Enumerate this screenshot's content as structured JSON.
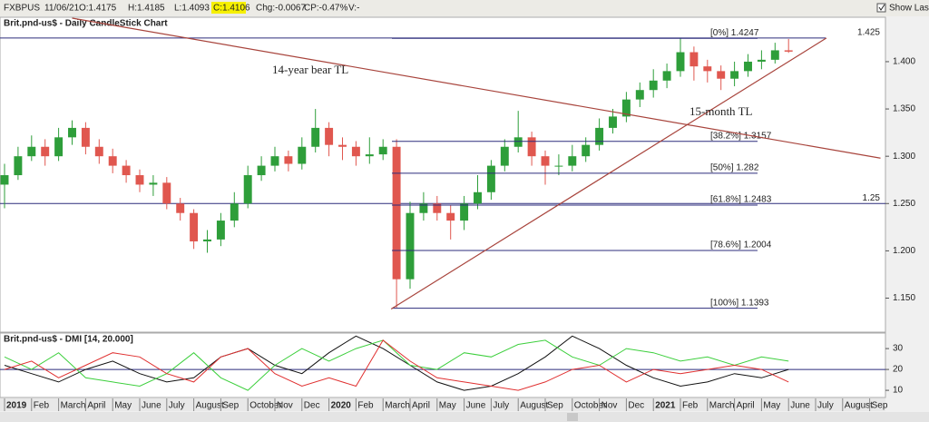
{
  "toolbar": {
    "symbol": "FXBPUS",
    "date": "11/06/21",
    "open": "O:1.4175",
    "high": "H:1.4185",
    "low": "L:1.4093",
    "close": "C:1.4106",
    "change": "Chg:-0.0067",
    "change_pct": "CP:-0.47%",
    "volume": "V:-",
    "show_last": "Show Last"
  },
  "chart_data": [
    {
      "type": "candlestick",
      "title": "Brit.pnd-us$ - Daily CandleStick Chart",
      "xlim": [
        0,
        32.5
      ],
      "ylim": [
        1.115,
        1.446
      ],
      "yticks": [
        {
          "value": 1.4,
          "label": "1.400"
        },
        {
          "value": 1.35,
          "label": "1.350"
        },
        {
          "value": 1.3,
          "label": "1.300"
        },
        {
          "value": 1.25,
          "label": "1.250"
        },
        {
          "value": 1.2,
          "label": "1.200"
        },
        {
          "value": 1.15,
          "label": "1.150"
        }
      ],
      "up_color": "#2e9e3a",
      "down_color": "#e0574f",
      "candles": {
        "x": [
          0,
          0.5,
          1,
          1.5,
          2,
          2.5,
          3,
          3.5,
          4,
          4.5,
          5,
          5.5,
          6,
          6.5,
          7,
          7.5,
          8,
          8.5,
          9,
          9.5,
          10,
          10.5,
          11,
          11.5,
          12,
          12.5,
          13,
          13.5,
          14,
          14.5,
          15,
          15.5,
          16,
          16.5,
          17,
          17.5,
          18,
          18.5,
          19,
          19.5,
          20,
          20.5,
          21,
          21.5,
          22,
          22.5,
          23,
          23.5,
          24,
          24.5,
          25,
          25.5,
          26,
          26.5,
          27,
          27.5,
          28,
          28.5,
          29
        ],
        "open": [
          1.27,
          1.28,
          1.3,
          1.31,
          1.3,
          1.32,
          1.33,
          1.31,
          1.3,
          1.29,
          1.28,
          1.27,
          1.272,
          1.25,
          1.24,
          1.21,
          1.212,
          1.232,
          1.25,
          1.28,
          1.29,
          1.3,
          1.292,
          1.31,
          1.33,
          1.312,
          1.31,
          1.3,
          1.302,
          1.31,
          1.17,
          1.24,
          1.25,
          1.24,
          1.232,
          1.25,
          1.262,
          1.29,
          1.31,
          1.32,
          1.3,
          1.29,
          1.29,
          1.3,
          1.312,
          1.33,
          1.342,
          1.36,
          1.37,
          1.38,
          1.39,
          1.41,
          1.395,
          1.39,
          1.382,
          1.39,
          1.4,
          1.402,
          1.412
        ],
        "high": [
          1.292,
          1.31,
          1.322,
          1.318,
          1.33,
          1.338,
          1.336,
          1.318,
          1.308,
          1.296,
          1.286,
          1.28,
          1.278,
          1.256,
          1.244,
          1.222,
          1.24,
          1.262,
          1.29,
          1.3,
          1.31,
          1.306,
          1.32,
          1.35,
          1.336,
          1.32,
          1.316,
          1.32,
          1.318,
          1.318,
          1.252,
          1.262,
          1.258,
          1.248,
          1.258,
          1.28,
          1.296,
          1.318,
          1.348,
          1.326,
          1.306,
          1.302,
          1.312,
          1.32,
          1.34,
          1.35,
          1.368,
          1.378,
          1.392,
          1.398,
          1.4247,
          1.416,
          1.402,
          1.396,
          1.4,
          1.408,
          1.412,
          1.42,
          1.424
        ],
        "low": [
          1.245,
          1.275,
          1.295,
          1.29,
          1.295,
          1.312,
          1.302,
          1.292,
          1.282,
          1.272,
          1.262,
          1.258,
          1.244,
          1.232,
          1.202,
          1.198,
          1.205,
          1.225,
          1.245,
          1.274,
          1.284,
          1.284,
          1.286,
          1.304,
          1.3,
          1.296,
          1.29,
          1.292,
          1.296,
          1.14,
          1.16,
          1.232,
          1.232,
          1.212,
          1.222,
          1.244,
          1.254,
          1.284,
          1.304,
          1.29,
          1.27,
          1.28,
          1.284,
          1.294,
          1.306,
          1.324,
          1.336,
          1.352,
          1.362,
          1.372,
          1.384,
          1.38,
          1.378,
          1.37,
          1.374,
          1.384,
          1.392,
          1.398,
          1.4093
        ],
        "close": [
          1.28,
          1.3,
          1.31,
          1.3,
          1.32,
          1.33,
          1.31,
          1.3,
          1.29,
          1.28,
          1.27,
          1.272,
          1.25,
          1.24,
          1.21,
          1.212,
          1.232,
          1.25,
          1.28,
          1.29,
          1.3,
          1.292,
          1.31,
          1.33,
          1.312,
          1.31,
          1.3,
          1.302,
          1.31,
          1.17,
          1.24,
          1.25,
          1.24,
          1.232,
          1.25,
          1.262,
          1.29,
          1.31,
          1.32,
          1.3,
          1.29,
          1.29,
          1.3,
          1.312,
          1.33,
          1.342,
          1.36,
          1.37,
          1.38,
          1.39,
          1.41,
          1.395,
          1.39,
          1.382,
          1.39,
          1.4,
          1.402,
          1.412,
          1.4106
        ]
      },
      "levels": [
        1.425,
        1.25
      ],
      "level_color": "#2c2c7c",
      "fib_levels": [
        {
          "value": 1.4247,
          "label": "[0%] 1.4247"
        },
        {
          "value": 1.3157,
          "label": "[38.2%] 1.3157"
        },
        {
          "value": 1.282,
          "label": "[50%] 1.282"
        },
        {
          "value": 1.2483,
          "label": "[61.8%] 1.2483"
        },
        {
          "value": 1.2004,
          "label": "[78.6%] 1.2004"
        },
        {
          "value": 1.1393,
          "label": "[100%] 1.1393"
        }
      ],
      "trendlines": [
        {
          "name": "14-year bear TL",
          "color": "#a8443c",
          "x": [
            2.5,
            32.4
          ],
          "y": [
            1.446,
            1.298
          ]
        },
        {
          "name": "15-month TL",
          "color": "#a8443c",
          "x": [
            14.3,
            30.4
          ],
          "y": [
            1.1385,
            1.425
          ]
        }
      ]
    },
    {
      "type": "line",
      "title": "Brit.pnd-us$ - DMI [14, 20.000]",
      "xlim": [
        0,
        32.5
      ],
      "ylim": [
        7,
        37
      ],
      "yticks": [
        30,
        20,
        10
      ],
      "threshold": 20,
      "xticks": [
        {
          "value": 0,
          "label": "2019"
        },
        {
          "value": 1,
          "label": "Feb"
        },
        {
          "value": 2,
          "label": "March"
        },
        {
          "value": 3,
          "label": "April"
        },
        {
          "value": 4,
          "label": "May"
        },
        {
          "value": 5,
          "label": "June"
        },
        {
          "value": 6,
          "label": "July"
        },
        {
          "value": 7,
          "label": "August"
        },
        {
          "value": 8,
          "label": "Sep"
        },
        {
          "value": 9,
          "label": "October"
        },
        {
          "value": 10,
          "label": "Nov"
        },
        {
          "value": 11,
          "label": "Dec"
        },
        {
          "value": 12,
          "label": "2020"
        },
        {
          "value": 13,
          "label": "Feb"
        },
        {
          "value": 14,
          "label": "March"
        },
        {
          "value": 15,
          "label": "April"
        },
        {
          "value": 16,
          "label": "May"
        },
        {
          "value": 17,
          "label": "June"
        },
        {
          "value": 18,
          "label": "July"
        },
        {
          "value": 19,
          "label": "August"
        },
        {
          "value": 20,
          "label": "Sep"
        },
        {
          "value": 21,
          "label": "October"
        },
        {
          "value": 22,
          "label": "Nov"
        },
        {
          "value": 23,
          "label": "Dec"
        },
        {
          "value": 24,
          "label": "2021"
        },
        {
          "value": 25,
          "label": "Feb"
        },
        {
          "value": 26,
          "label": "March"
        },
        {
          "value": 27,
          "label": "April"
        },
        {
          "value": 28,
          "label": "May"
        },
        {
          "value": 29,
          "label": "June"
        },
        {
          "value": 30,
          "label": "July"
        },
        {
          "value": 31,
          "label": "August"
        },
        {
          "value": 32,
          "label": "Sep"
        }
      ],
      "x": [
        0,
        1,
        2,
        3,
        4,
        5,
        6,
        7,
        8,
        9,
        10,
        11,
        12,
        13,
        14,
        15,
        16,
        17,
        18,
        19,
        20,
        21,
        22,
        23,
        24,
        25,
        26,
        27,
        28,
        29
      ],
      "series": [
        {
          "color": "#111111",
          "values": [
            22,
            18,
            14,
            20,
            24,
            18,
            14,
            16,
            26,
            30,
            22,
            18,
            28,
            36,
            30,
            22,
            14,
            10,
            12,
            18,
            26,
            36,
            30,
            22,
            16,
            12,
            14,
            18,
            16,
            20
          ]
        },
        {
          "color": "#3ccf3c",
          "values": [
            26,
            20,
            28,
            16,
            14,
            12,
            18,
            28,
            16,
            10,
            22,
            30,
            24,
            30,
            34,
            22,
            20,
            28,
            26,
            32,
            34,
            26,
            22,
            30,
            28,
            24,
            26,
            22,
            26,
            24
          ]
        },
        {
          "color": "#e03030",
          "values": [
            20,
            24,
            16,
            22,
            28,
            26,
            18,
            14,
            26,
            30,
            18,
            12,
            16,
            12,
            34,
            24,
            16,
            14,
            12,
            10,
            14,
            20,
            22,
            14,
            20,
            18,
            20,
            22,
            20,
            14
          ]
        }
      ]
    }
  ]
}
